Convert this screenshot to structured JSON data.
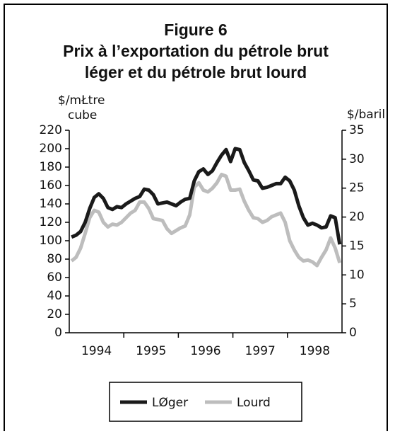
{
  "chart_data": {
    "type": "line",
    "title": "Figure 6",
    "subtitle": [
      "Prix à l’exportation du pétrole brut",
      "léger et du pétrole brut lourd"
    ],
    "y_label": [
      "$/mŁtre",
      "cube"
    ],
    "y2_label": "$/baril",
    "categories": [
      null,
      null,
      null,
      null,
      null,
      null,
      "1994",
      null,
      null,
      null,
      null,
      null,
      null,
      null,
      null,
      null,
      null,
      null,
      "1995",
      null,
      null,
      null,
      null,
      null,
      null,
      null,
      null,
      null,
      null,
      null,
      "1996",
      null,
      null,
      null,
      null,
      null,
      null,
      null,
      null,
      null,
      null,
      null,
      "1997",
      null,
      null,
      null,
      null,
      null,
      null,
      null,
      null,
      null,
      null,
      null,
      "1998",
      null,
      null,
      null,
      null,
      null
    ],
    "series": [
      {
        "name": "LØger",
        "color": "#1a1a1a",
        "values": [
          104,
          106,
          110,
          120,
          135,
          147,
          151,
          146,
          136,
          134,
          137,
          136,
          140,
          143,
          146,
          148,
          156,
          155,
          150,
          140,
          141,
          142,
          140,
          138,
          142,
          145,
          146,
          165,
          175,
          178,
          172,
          176,
          185,
          193,
          199,
          186,
          200,
          199,
          185,
          176,
          166,
          165,
          157,
          158,
          160,
          162,
          162,
          169,
          165,
          155,
          138,
          125,
          117,
          119,
          117,
          114,
          115,
          127,
          125,
          96
        ]
      },
      {
        "name": "Lourd",
        "color": "#bdbdbd",
        "values": [
          78,
          82,
          92,
          108,
          125,
          133,
          131,
          120,
          115,
          118,
          117,
          120,
          125,
          130,
          133,
          142,
          142,
          135,
          124,
          123,
          122,
          113,
          108,
          111,
          114,
          116,
          128,
          158,
          163,
          155,
          153,
          157,
          163,
          172,
          170,
          155,
          155,
          156,
          143,
          133,
          125,
          124,
          120,
          122,
          126,
          128,
          130,
          120,
          100,
          90,
          82,
          78,
          79,
          77,
          73,
          82,
          90,
          103,
          92,
          76
        ]
      }
    ],
    "ylim": [
      0,
      220
    ],
    "yticks": [
      0,
      20,
      40,
      60,
      80,
      100,
      120,
      140,
      160,
      180,
      200,
      220
    ],
    "y2lim": [
      0,
      35
    ],
    "y2ticks": [
      0,
      5,
      10,
      15,
      20,
      25,
      30,
      35
    ],
    "grid": false
  }
}
